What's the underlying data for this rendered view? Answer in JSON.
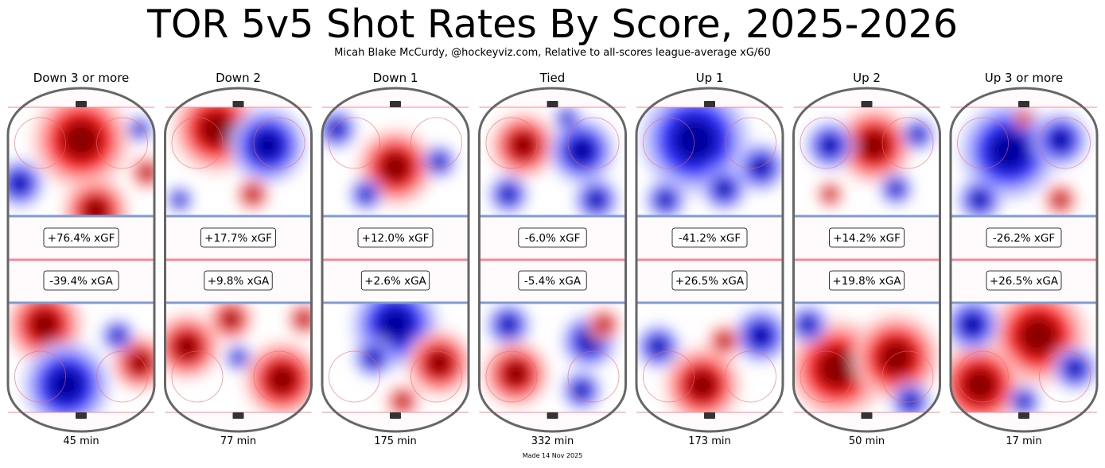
{
  "title": "TOR 5v5 Shot Rates By Score, 2025-2026",
  "subtitle": "Micah Blake McCurdy, @hockeyviz.com, Relative to all-scores league-average xG/60",
  "footer": "Made 14 Nov 2025",
  "chart_data": {
    "type": "heatmap",
    "description_colors": {
      "above_average": "#cc0000",
      "below_average": "#0000cc",
      "rink_outline": "#666666",
      "blue_line": "#7f9bd6",
      "red_line": "#f08a9a"
    },
    "panels": [
      {
        "label": "Down 3 or more",
        "xgf": "+76.4% xGF",
        "xga": "-39.4% xGA",
        "minutes": "45 min"
      },
      {
        "label": "Down 2",
        "xgf": "+17.7% xGF",
        "xga": "+9.8% xGA",
        "minutes": "77 min"
      },
      {
        "label": "Down 1",
        "xgf": "+12.0% xGF",
        "xga": "+2.6% xGA",
        "minutes": "175 min"
      },
      {
        "label": "Tied",
        "xgf": "-6.0% xGF",
        "xga": "-5.4% xGA",
        "minutes": "332 min"
      },
      {
        "label": "Up 1",
        "xgf": "-41.2% xGF",
        "xga": "+26.5% xGA",
        "minutes": "173 min"
      },
      {
        "label": "Up 2",
        "xgf": "+14.2% xGF",
        "xga": "+19.8% xGA",
        "minutes": "50 min"
      },
      {
        "label": "Up 3 or more",
        "xgf": "-26.2% xGF",
        "xga": "+26.5% xGA",
        "minutes": "17 min"
      }
    ]
  }
}
